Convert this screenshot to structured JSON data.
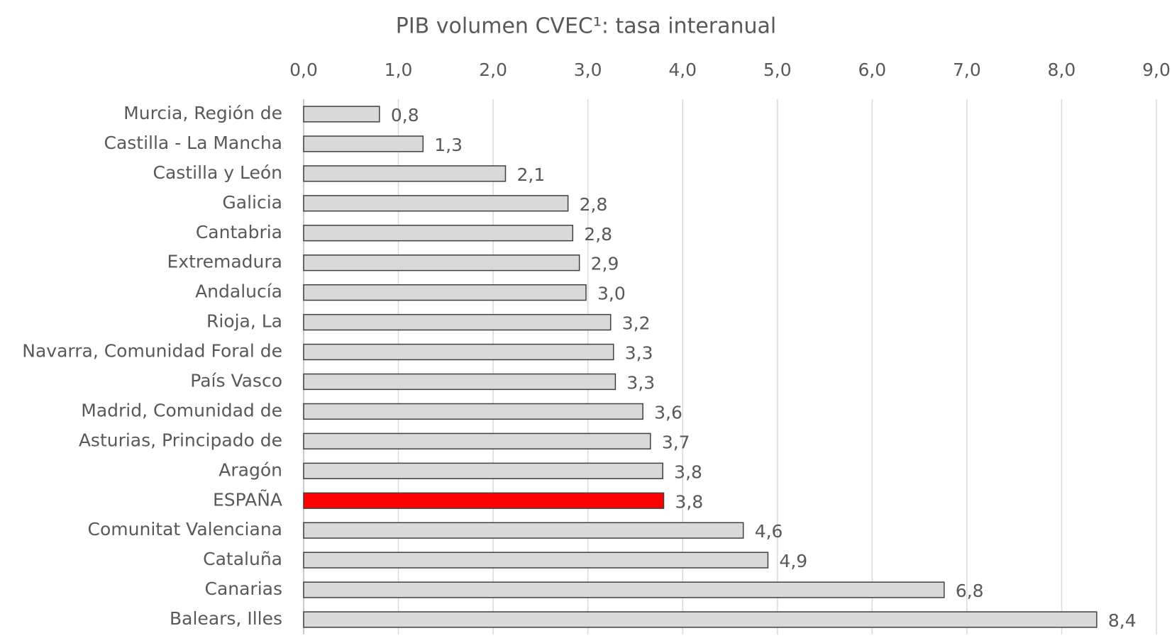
{
  "chart_data": {
    "type": "bar",
    "orientation": "horizontal",
    "title": "PIB volumen CVEC¹: tasa interanual",
    "categories": [
      "Murcia, Región de",
      "Castilla - La Mancha",
      "Castilla y León",
      "Galicia",
      "Cantabria",
      "Extremadura",
      "Andalucía",
      "Rioja, La",
      "Navarra, Comunidad Foral de",
      "País Vasco",
      "Madrid, Comunidad de",
      "Asturias, Principado de",
      "Aragón",
      "ESPAÑA",
      "Comunitat Valenciana",
      "Cataluña",
      "Canarias",
      "Balears, Illes"
    ],
    "values": [
      0.8,
      1.26,
      2.13,
      2.79,
      2.84,
      2.91,
      2.98,
      3.24,
      3.27,
      3.29,
      3.58,
      3.66,
      3.79,
      3.8,
      4.64,
      4.9,
      6.76,
      8.37
    ],
    "value_labels": [
      "0,8",
      "1,3",
      "2,1",
      "2,8",
      "2,8",
      "2,9",
      "3,0",
      "3,2",
      "3,3",
      "3,3",
      "3,6",
      "3,7",
      "3,8",
      "3,8",
      "4,6",
      "4,9",
      "6,8",
      "8,4"
    ],
    "colors": [
      "#d9d9d9",
      "#d9d9d9",
      "#d9d9d9",
      "#d9d9d9",
      "#d9d9d9",
      "#d9d9d9",
      "#d9d9d9",
      "#d9d9d9",
      "#d9d9d9",
      "#d9d9d9",
      "#d9d9d9",
      "#d9d9d9",
      "#d9d9d9",
      "#ff0000",
      "#d9d9d9",
      "#d9d9d9",
      "#d9d9d9",
      "#d9d9d9"
    ],
    "xlim": [
      0,
      9
    ],
    "xticks": [
      {
        "value": 0,
        "label": "0,0"
      },
      {
        "value": 1,
        "label": "1,0"
      },
      {
        "value": 2,
        "label": "2,0"
      },
      {
        "value": 3,
        "label": "3,0"
      },
      {
        "value": 4,
        "label": "4,0"
      },
      {
        "value": 5,
        "label": "5,0"
      },
      {
        "value": 6,
        "label": "6,0"
      },
      {
        "value": 7,
        "label": "7,0"
      },
      {
        "value": 8,
        "label": "8,0"
      },
      {
        "value": 9,
        "label": "9,0"
      }
    ],
    "grid": true
  }
}
